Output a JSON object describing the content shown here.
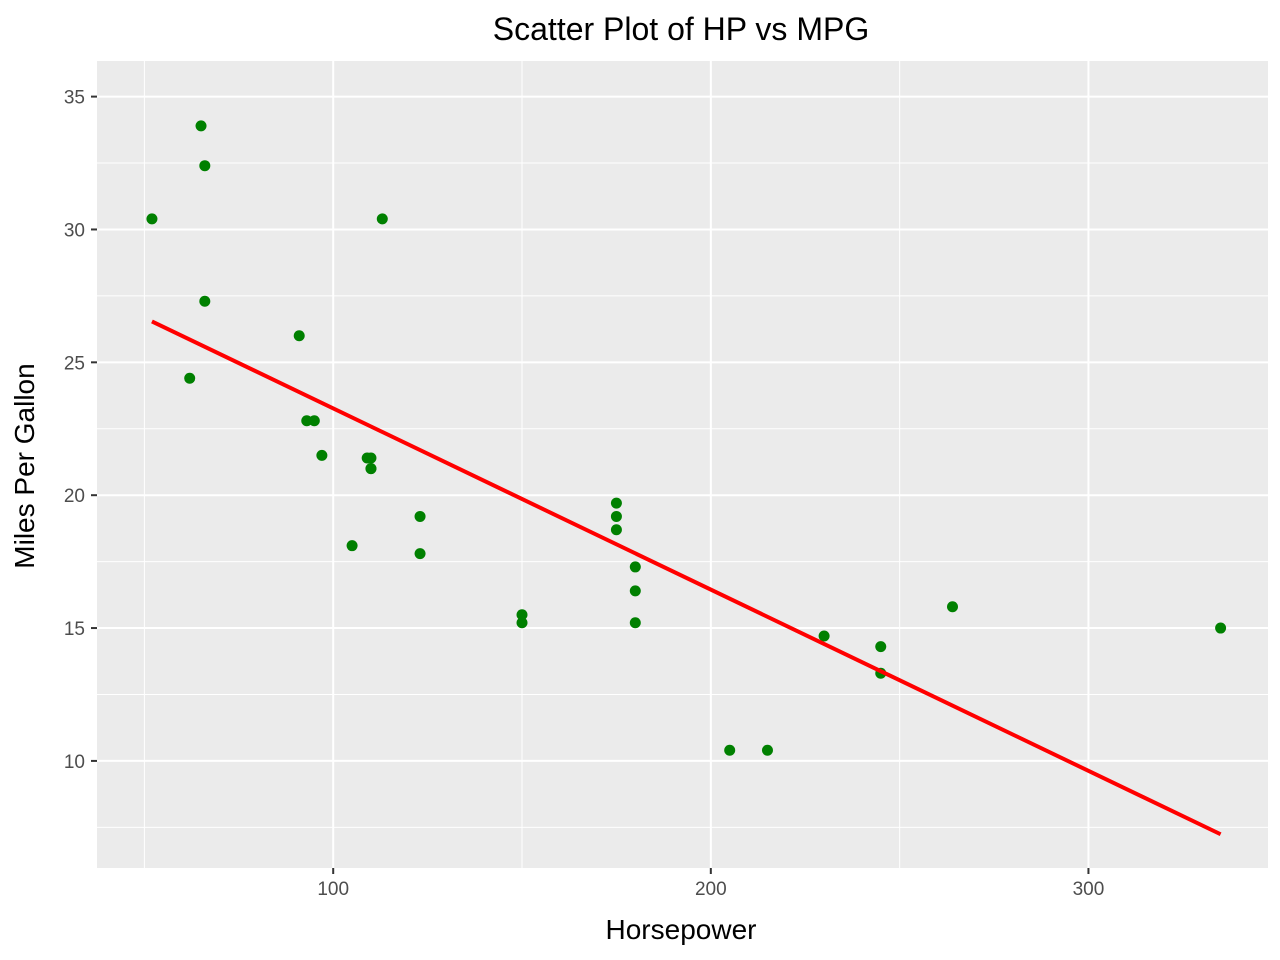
{
  "chart_data": {
    "type": "scatter",
    "title": "Scatter Plot of HP vs MPG",
    "xlabel": "Horsepower",
    "ylabel": "Miles Per Gallon",
    "xlim": [
      37.45,
      347.55
    ],
    "ylim": [
      5.97,
      36.34
    ],
    "xticks": [
      100,
      200,
      300
    ],
    "xticks_minor": [
      50,
      150,
      250
    ],
    "yticks": [
      10,
      15,
      20,
      25,
      30,
      35
    ],
    "yticks_minor": [
      7.5,
      12.5,
      17.5,
      22.5,
      27.5,
      32.5
    ],
    "grid": true,
    "legend": "none",
    "panel_color": "#ebebeb",
    "grid_color": "#ffffff",
    "point_color": "#008000",
    "line_color": "#ff0000",
    "points": [
      {
        "x": 52,
        "y": 30.4
      },
      {
        "x": 62,
        "y": 24.4
      },
      {
        "x": 65,
        "y": 33.9
      },
      {
        "x": 66,
        "y": 32.4
      },
      {
        "x": 66,
        "y": 27.3
      },
      {
        "x": 91,
        "y": 26.0
      },
      {
        "x": 93,
        "y": 22.8
      },
      {
        "x": 95,
        "y": 22.8
      },
      {
        "x": 97,
        "y": 21.5
      },
      {
        "x": 105,
        "y": 18.1
      },
      {
        "x": 109,
        "y": 21.4
      },
      {
        "x": 110,
        "y": 21.0
      },
      {
        "x": 110,
        "y": 21.0
      },
      {
        "x": 110,
        "y": 21.4
      },
      {
        "x": 113,
        "y": 30.4
      },
      {
        "x": 123,
        "y": 17.8
      },
      {
        "x": 123,
        "y": 19.2
      },
      {
        "x": 150,
        "y": 15.2
      },
      {
        "x": 150,
        "y": 15.5
      },
      {
        "x": 175,
        "y": 18.7
      },
      {
        "x": 175,
        "y": 19.2
      },
      {
        "x": 175,
        "y": 19.7
      },
      {
        "x": 180,
        "y": 16.4
      },
      {
        "x": 180,
        "y": 17.3
      },
      {
        "x": 180,
        "y": 15.2
      },
      {
        "x": 205,
        "y": 10.4
      },
      {
        "x": 215,
        "y": 10.4
      },
      {
        "x": 230,
        "y": 14.7
      },
      {
        "x": 245,
        "y": 14.3
      },
      {
        "x": 245,
        "y": 13.3
      },
      {
        "x": 264,
        "y": 15.8
      },
      {
        "x": 335,
        "y": 15.0
      }
    ],
    "fit_line": {
      "x": [
        52,
        335
      ],
      "y": [
        26.54,
        7.24
      ]
    }
  }
}
